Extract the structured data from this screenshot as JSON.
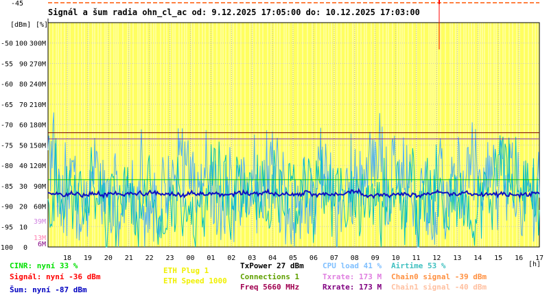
{
  "chart_data": {
    "type": "line",
    "title": "Signál a šum radia ohn_cl_ac od: 9.12.2025 17:05:00 do: 10.12.2025 17:03:00",
    "y_unit_dbm": "[dBm]",
    "y_unit_pct": "[%]",
    "x_unit": "[h]",
    "x_ticks": [
      "18",
      "19",
      "20",
      "21",
      "22",
      "23",
      "00",
      "01",
      "02",
      "03",
      "04",
      "05",
      "06",
      "07",
      "08",
      "09",
      "10",
      "11",
      "12",
      "13",
      "14",
      "15",
      "16",
      "17"
    ],
    "y_ticks_dbm": [
      "-45",
      "-50",
      "-55",
      "-60",
      "-65",
      "-70",
      "-75",
      "-80",
      "-85",
      "-90",
      "-95",
      "-100"
    ],
    "y_ticks_pct": [
      "100",
      "90",
      "80",
      "70",
      "60",
      "50",
      "40",
      "30",
      "20",
      "10",
      "0"
    ],
    "y_ticks_rate": [
      "300M",
      "270M",
      "240M",
      "210M",
      "180M",
      "150M",
      "120M",
      "90M",
      "60M"
    ],
    "y_extra_labels": [
      {
        "text": "39M",
        "color": "#d080e0"
      },
      {
        "text": "13M",
        "color": "#ff7fb0"
      },
      {
        "text": "6M",
        "color": "#800080"
      }
    ],
    "ylim_dbm": [
      -100,
      -45
    ],
    "colors": {
      "background": "#ffff60",
      "grid": "#e8e8e8",
      "cpu": "#4db0f0",
      "cinr": "#00c0c0",
      "noise": "#1010c0",
      "signal": "#ff0000",
      "connections": "#00c000",
      "txrate": "#8030a0",
      "rxrate": "#800000"
    },
    "series_levels": {
      "noise_dbm": -87,
      "connections_level_dbm": -83.5,
      "txrate_line_dbm": -73.5,
      "rxrate_line_dbm": -72
    }
  },
  "legend": [
    {
      "text": "CINR: nyní 33 %",
      "color": "#00e000"
    },
    {
      "text": "Signál: nyní -36 dBm",
      "color": "#ff0000"
    },
    {
      "text": "Šum: nyní -87 dBm",
      "color": "#0000c0"
    },
    {
      "text": "ETH Plug 1",
      "color": "#f0f000"
    },
    {
      "text": "ETH Speed 1000",
      "color": "#f0f000"
    },
    {
      "text": "TxPower 27 dBm",
      "color": "#000000"
    },
    {
      "text": "Connections 1",
      "color": "#60a000"
    },
    {
      "text": "Freq 5660 MHz",
      "color": "#a00050"
    },
    {
      "text": "CPU load 41 %",
      "color": "#80c0ff"
    },
    {
      "text": "Txrate: 173 M",
      "color": "#e080e0"
    },
    {
      "text": "Rxrate: 173 M",
      "color": "#800080"
    },
    {
      "text": "Airtime 53 %",
      "color": "#40c0c0"
    },
    {
      "text": "Chain0 signal -39 dBm",
      "color": "#ff9040"
    },
    {
      "text": "Chain1 signal -40 dBm",
      "color": "#ffc0a0"
    }
  ]
}
